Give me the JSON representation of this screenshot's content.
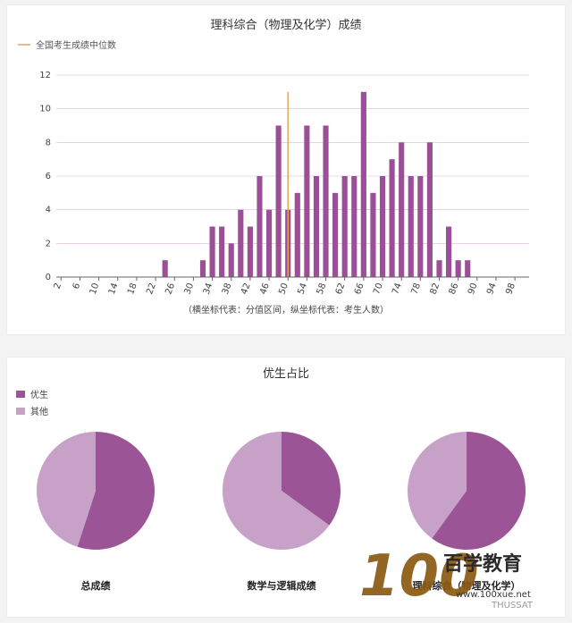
{
  "chart_data": [
    {
      "type": "bar",
      "title": "理科综合（物理及化学）成绩",
      "legend": {
        "label": "全国考生成绩中位数",
        "position": "top-left"
      },
      "median_x": 50,
      "x": [
        2,
        4,
        6,
        8,
        10,
        12,
        14,
        16,
        18,
        20,
        22,
        24,
        26,
        28,
        30,
        32,
        34,
        36,
        38,
        40,
        42,
        44,
        46,
        48,
        50,
        52,
        54,
        56,
        58,
        60,
        62,
        64,
        66,
        68,
        70,
        72,
        74,
        76,
        78,
        80,
        82,
        84,
        86,
        88,
        90,
        92,
        94,
        96,
        98,
        100
      ],
      "tick_labels": [
        "2",
        "6",
        "10",
        "14",
        "18",
        "22",
        "26",
        "30",
        "34",
        "38",
        "42",
        "46",
        "50",
        "54",
        "58",
        "62",
        "66",
        "70",
        "74",
        "78",
        "82",
        "86",
        "90",
        "94",
        "98"
      ],
      "values": [
        0,
        0,
        0,
        0,
        0,
        0,
        0,
        0,
        0,
        0,
        0,
        1,
        0,
        0,
        0,
        1,
        3,
        3,
        2,
        4,
        3,
        6,
        4,
        9,
        4,
        5,
        9,
        6,
        9,
        5,
        6,
        6,
        11,
        5,
        6,
        7,
        8,
        6,
        6,
        8,
        1,
        3,
        1,
        1,
        0,
        0,
        0,
        0,
        0,
        0
      ],
      "ylim": [
        0,
        12
      ],
      "yticks": [
        0,
        2,
        4,
        6,
        8,
        10,
        12
      ],
      "caption": "（横坐标代表：分值区间，纵坐标代表：考生人数）",
      "colors": {
        "bar": "#9b4f96",
        "median": "#e6a35a",
        "grid": "#d9b6d6"
      }
    },
    {
      "type": "pie",
      "title": "优生占比",
      "legend": [
        "优生",
        "其他"
      ],
      "colors": {
        "excellent": "#9b5496",
        "other": "#c8a1c8"
      },
      "pies": [
        {
          "label": "总成绩",
          "excellent": 0.55,
          "other": 0.45
        },
        {
          "label": "数学与逻辑成绩",
          "excellent": 0.35,
          "other": 0.65
        },
        {
          "label": "理科综合（物理及化学）",
          "excellent": 0.6,
          "other": 0.4
        }
      ]
    }
  ],
  "watermark": {
    "logo_number": "100",
    "logo_text": "百学教育",
    "url": "www.100xue.net",
    "brand": "THUSSAT"
  }
}
